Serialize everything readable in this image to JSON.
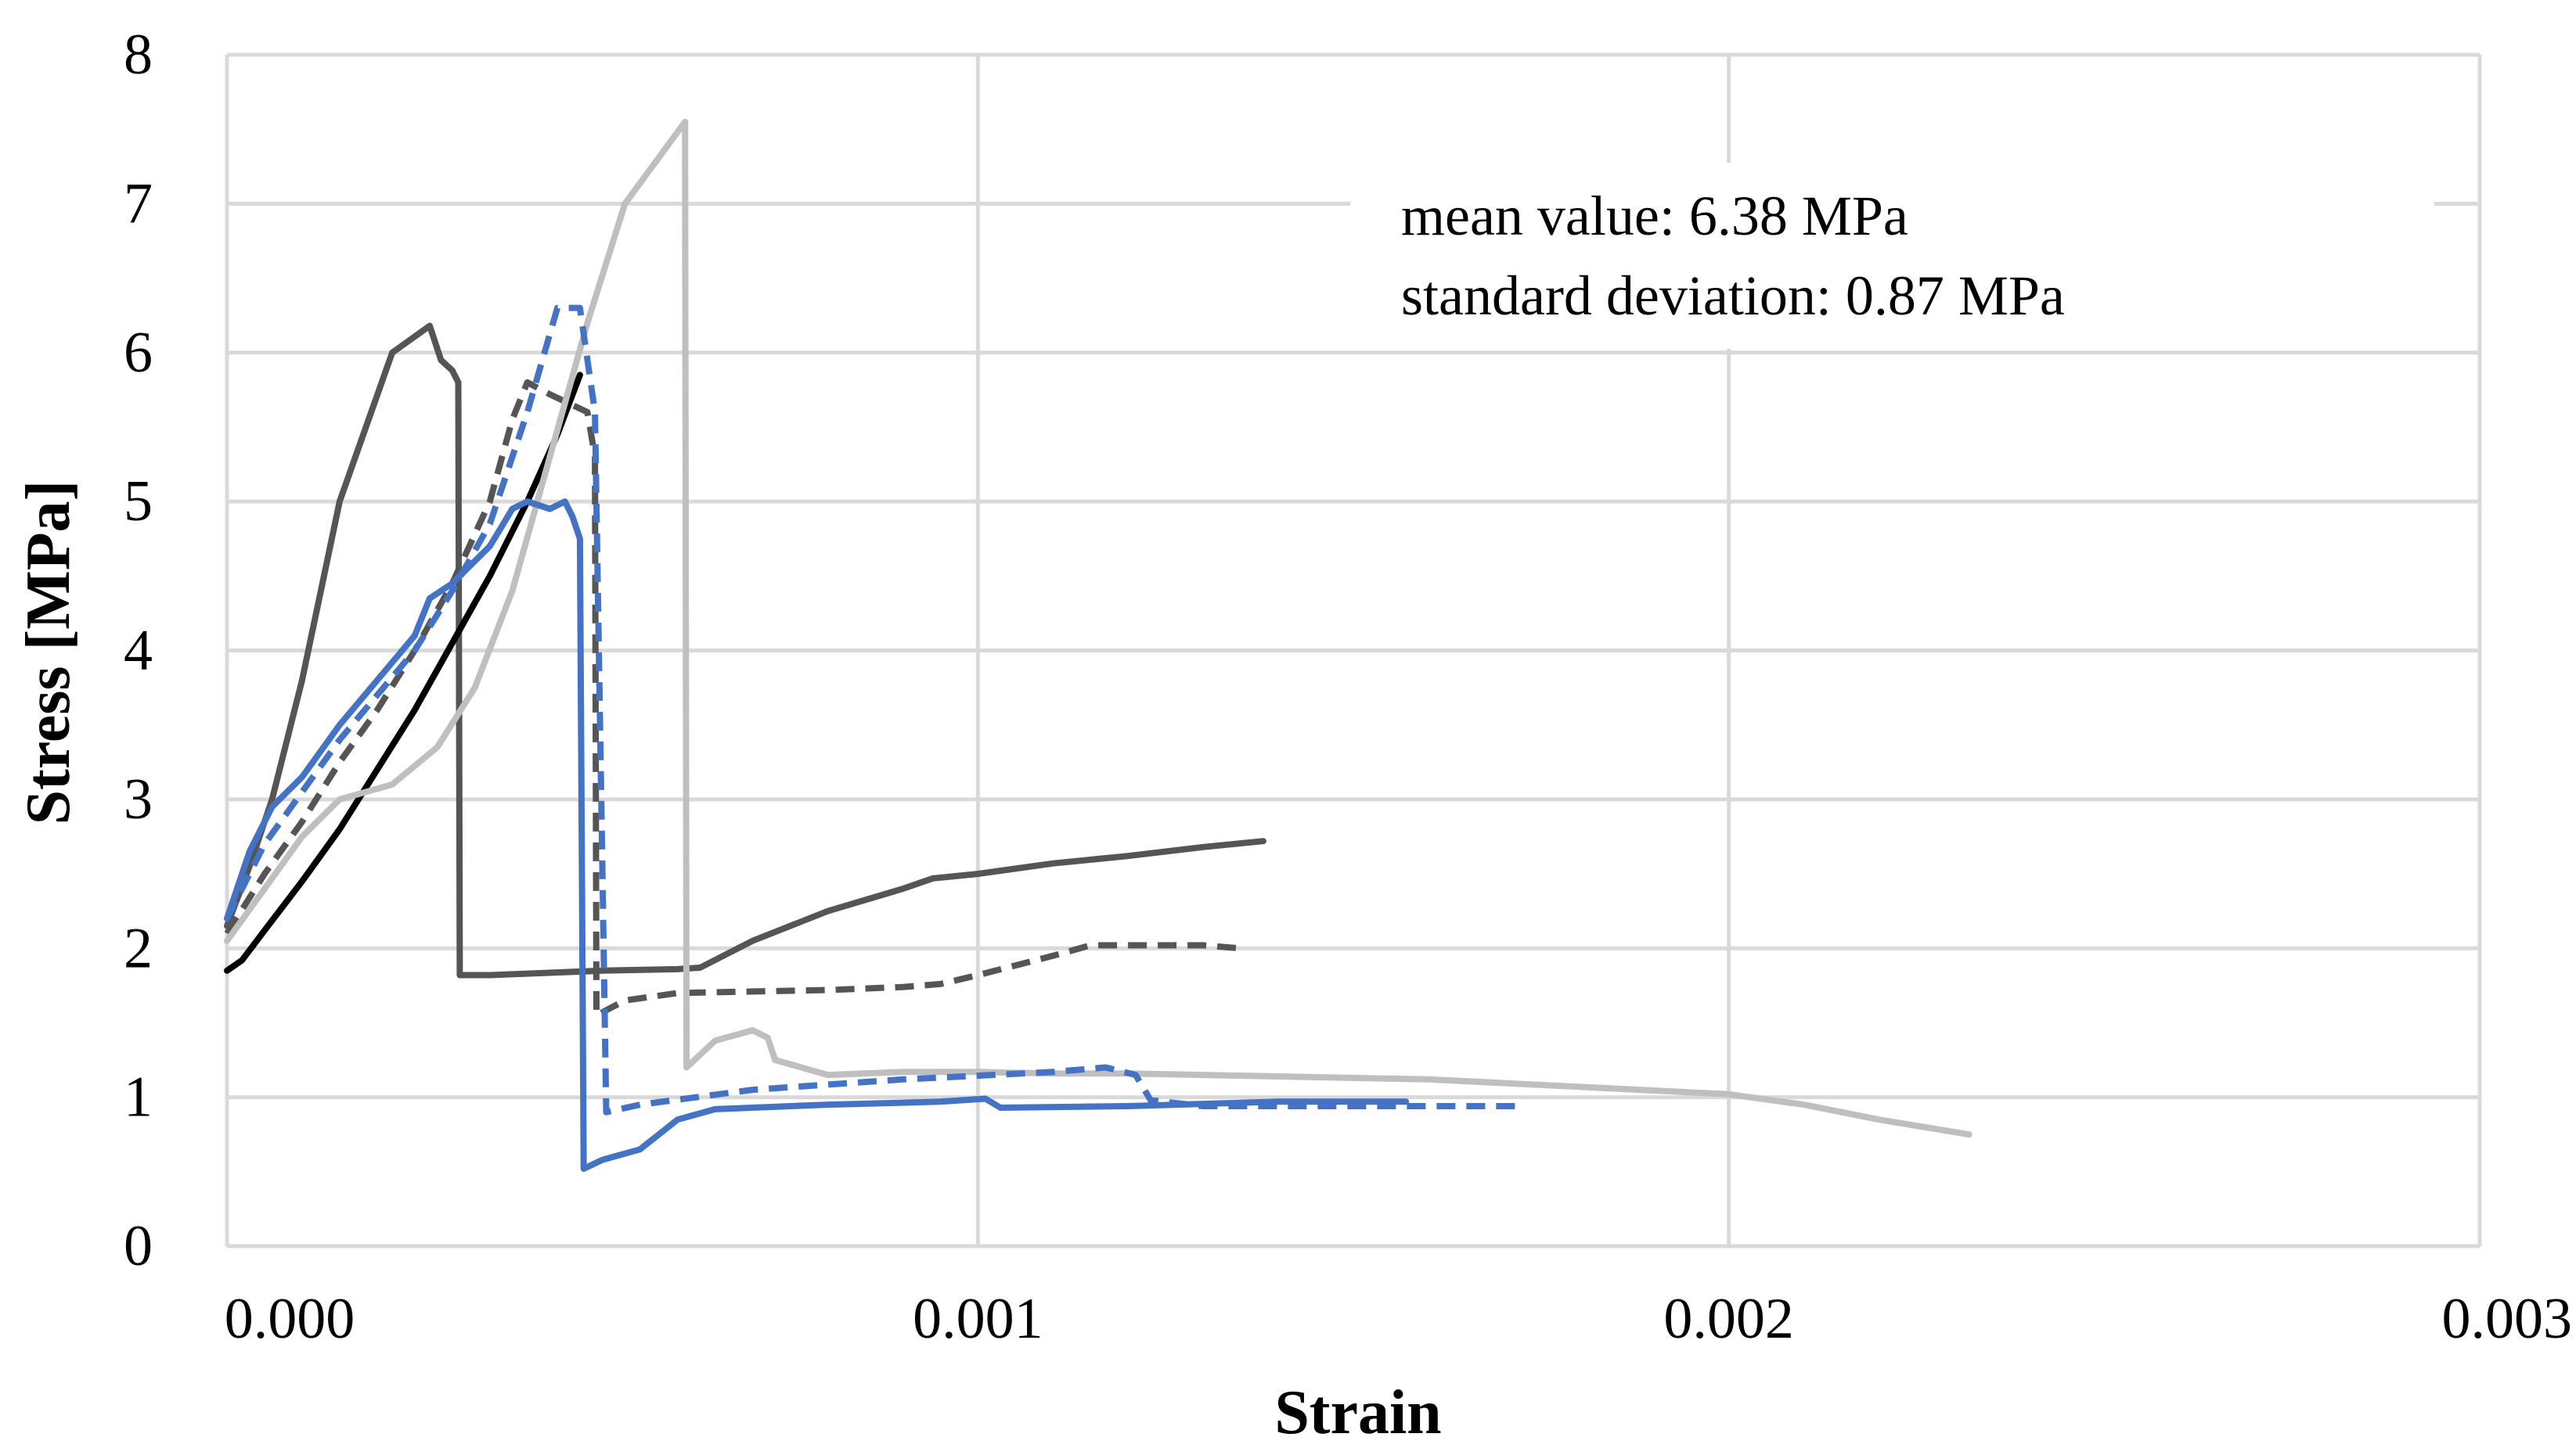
{
  "chart_data": {
    "type": "line",
    "title": "",
    "xlabel": "Strain",
    "ylabel": "Stress [MPa]",
    "xlim": [
      0,
      0.003
    ],
    "ylim": [
      0,
      8
    ],
    "grid": true,
    "x_ticks": [
      0,
      0.001,
      0.002,
      0.003
    ],
    "x_tick_labels": [
      "0.000",
      "0.001",
      "0.002",
      "0.003"
    ],
    "y_ticks": [
      0,
      1,
      2,
      3,
      4,
      5,
      6,
      7,
      8
    ],
    "y_tick_labels": [
      "0",
      "1",
      "2",
      "3",
      "4",
      "5",
      "6",
      "7",
      "8"
    ],
    "annotation": {
      "line1": "mean value:  6.38 MPa",
      "line2": "standard deviation: 0.87 MPa"
    },
    "series": [
      {
        "name": "specimen-dark-gray-solid",
        "color": "#555555",
        "dashed": false,
        "points": [
          [
            0,
            2.15
          ],
          [
            3e-05,
            2.55
          ],
          [
            6e-05,
            3.0
          ],
          [
            0.0001,
            3.8
          ],
          [
            0.00015,
            5.0
          ],
          [
            0.00022,
            6.0
          ],
          [
            0.00027,
            6.18
          ],
          [
            0.000285,
            5.95
          ],
          [
            0.0003,
            5.88
          ],
          [
            0.000308,
            5.8
          ],
          [
            0.00031,
            1.82
          ],
          [
            0.00035,
            1.82
          ],
          [
            0.0004,
            1.83
          ],
          [
            0.0005,
            1.85
          ],
          [
            0.0006,
            1.86
          ],
          [
            0.00063,
            1.87
          ],
          [
            0.0007,
            2.05
          ],
          [
            0.0008,
            2.25
          ],
          [
            0.0009,
            2.4
          ],
          [
            0.00094,
            2.47
          ],
          [
            0.001,
            2.5
          ],
          [
            0.0011,
            2.57
          ],
          [
            0.0012,
            2.62
          ],
          [
            0.0013,
            2.68
          ],
          [
            0.00138,
            2.72
          ]
        ]
      },
      {
        "name": "specimen-dark-gray-dashed",
        "color": "#555555",
        "dashed": true,
        "points": [
          [
            0,
            2.1
          ],
          [
            5e-05,
            2.5
          ],
          [
            0.0001,
            2.85
          ],
          [
            0.00015,
            3.25
          ],
          [
            0.0002,
            3.6
          ],
          [
            0.00025,
            4.0
          ],
          [
            0.0003,
            4.45
          ],
          [
            0.00035,
            5.0
          ],
          [
            0.00038,
            5.55
          ],
          [
            0.0004,
            5.8
          ],
          [
            0.00043,
            5.72
          ],
          [
            0.00048,
            5.6
          ],
          [
            0.00049,
            5.3
          ],
          [
            0.000492,
            1.55
          ],
          [
            0.00053,
            1.65
          ],
          [
            0.0006,
            1.7
          ],
          [
            0.0008,
            1.72
          ],
          [
            0.0009,
            1.74
          ],
          [
            0.00095,
            1.76
          ],
          [
            0.001,
            1.82
          ],
          [
            0.0011,
            1.95
          ],
          [
            0.00115,
            2.02
          ],
          [
            0.0012,
            2.02
          ],
          [
            0.0013,
            2.02
          ],
          [
            0.00135,
            2.0
          ]
        ]
      },
      {
        "name": "specimen-black-solid",
        "color": "#000000",
        "dashed": false,
        "points": [
          [
            0,
            1.85
          ],
          [
            2e-05,
            1.92
          ],
          [
            5e-05,
            2.12
          ],
          [
            0.0001,
            2.45
          ],
          [
            0.00015,
            2.8
          ],
          [
            0.0002,
            3.2
          ],
          [
            0.00025,
            3.6
          ],
          [
            0.0003,
            4.05
          ],
          [
            0.00035,
            4.5
          ],
          [
            0.0004,
            5.0
          ],
          [
            0.00044,
            5.45
          ],
          [
            0.00047,
            5.85
          ]
        ]
      },
      {
        "name": "specimen-light-gray-solid",
        "color": "#bfbfbf",
        "dashed": false,
        "points": [
          [
            0,
            2.05
          ],
          [
            5e-05,
            2.4
          ],
          [
            0.0001,
            2.75
          ],
          [
            0.00015,
            3.0
          ],
          [
            0.00022,
            3.1
          ],
          [
            0.00028,
            3.35
          ],
          [
            0.00033,
            3.75
          ],
          [
            0.00038,
            4.4
          ],
          [
            0.00043,
            5.3
          ],
          [
            0.00048,
            6.2
          ],
          [
            0.00053,
            7.0
          ],
          [
            0.00061,
            7.55
          ],
          [
            0.000612,
            1.2
          ],
          [
            0.00065,
            1.38
          ],
          [
            0.0007,
            1.45
          ],
          [
            0.00072,
            1.4
          ],
          [
            0.00073,
            1.25
          ],
          [
            0.0008,
            1.15
          ],
          [
            0.0009,
            1.17
          ],
          [
            0.001,
            1.17
          ],
          [
            0.0011,
            1.16
          ],
          [
            0.0012,
            1.16
          ],
          [
            0.0014,
            1.14
          ],
          [
            0.0016,
            1.12
          ],
          [
            0.0018,
            1.07
          ],
          [
            0.002,
            1.02
          ],
          [
            0.0021,
            0.95
          ],
          [
            0.0022,
            0.85
          ],
          [
            0.00232,
            0.75
          ]
        ]
      },
      {
        "name": "specimen-blue-solid",
        "color": "#4472c4",
        "dashed": false,
        "points": [
          [
            0,
            2.2
          ],
          [
            3e-05,
            2.65
          ],
          [
            6e-05,
            2.95
          ],
          [
            0.0001,
            3.15
          ],
          [
            0.00015,
            3.5
          ],
          [
            0.0002,
            3.8
          ],
          [
            0.00025,
            4.1
          ],
          [
            0.00027,
            4.35
          ],
          [
            0.0003,
            4.45
          ],
          [
            0.00035,
            4.7
          ],
          [
            0.00038,
            4.95
          ],
          [
            0.0004,
            5.0
          ],
          [
            0.00043,
            4.95
          ],
          [
            0.00045,
            5.0
          ],
          [
            0.00046,
            4.9
          ],
          [
            0.00047,
            4.75
          ],
          [
            0.000475,
            0.52
          ],
          [
            0.0005,
            0.58
          ],
          [
            0.00055,
            0.65
          ],
          [
            0.0006,
            0.85
          ],
          [
            0.00065,
            0.92
          ],
          [
            0.0008,
            0.95
          ],
          [
            0.00095,
            0.97
          ],
          [
            0.00101,
            0.99
          ],
          [
            0.00103,
            0.93
          ],
          [
            0.0012,
            0.94
          ],
          [
            0.0014,
            0.97
          ],
          [
            0.00157,
            0.97
          ]
        ]
      },
      {
        "name": "specimen-blue-dashed",
        "color": "#4472c4",
        "dashed": true,
        "points": [
          [
            0,
            2.2
          ],
          [
            5e-05,
            2.7
          ],
          [
            0.0001,
            3.05
          ],
          [
            0.00015,
            3.4
          ],
          [
            0.0002,
            3.7
          ],
          [
            0.00025,
            4.0
          ],
          [
            0.0003,
            4.4
          ],
          [
            0.00035,
            4.85
          ],
          [
            0.0004,
            5.6
          ],
          [
            0.00044,
            6.3
          ],
          [
            0.00047,
            6.3
          ],
          [
            0.00049,
            5.6
          ],
          [
            0.0005,
            2.5
          ],
          [
            0.000505,
            0.9
          ],
          [
            0.00055,
            0.95
          ],
          [
            0.0007,
            1.05
          ],
          [
            0.0009,
            1.12
          ],
          [
            0.0011,
            1.17
          ],
          [
            0.00117,
            1.2
          ],
          [
            0.00121,
            1.15
          ],
          [
            0.00123,
            0.98
          ],
          [
            0.0013,
            0.94
          ],
          [
            0.0015,
            0.94
          ],
          [
            0.00172,
            0.94
          ]
        ]
      }
    ]
  }
}
